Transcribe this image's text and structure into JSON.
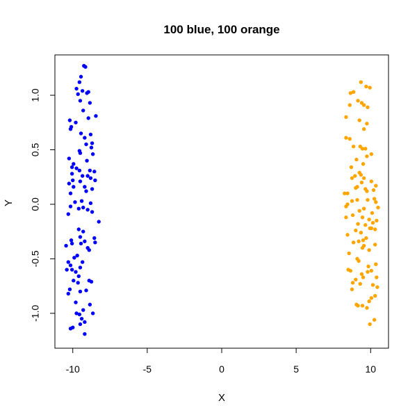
{
  "chart_data": {
    "type": "scatter",
    "title": "100 blue, 100 orange",
    "xlabel": "X",
    "ylabel": "Y",
    "xlim": [
      -11.2,
      11.2
    ],
    "ylim": [
      -1.32,
      1.37
    ],
    "xticks": [
      -10,
      -5,
      0,
      5,
      10
    ],
    "yticks": [
      -1.0,
      -0.5,
      0.0,
      0.5,
      1.0
    ],
    "xtick_labels": [
      "-10",
      "-5",
      "0",
      "5",
      "10"
    ],
    "ytick_labels": [
      "-1.0",
      "-0.5",
      "0.0",
      "0.5",
      "1.0"
    ],
    "grid": false,
    "series": [
      {
        "color": "#0000ff",
        "points": [
          [
            -9.25,
            1.27
          ],
          [
            -9.15,
            1.26
          ],
          [
            -9.45,
            1.17
          ],
          [
            -9.55,
            1.12
          ],
          [
            -9.75,
            1.06
          ],
          [
            -9.35,
            1.04
          ],
          [
            -8.95,
            1.03
          ],
          [
            -9.05,
            1.02
          ],
          [
            -9.65,
            1.01
          ],
          [
            -9.5,
            0.95
          ],
          [
            -8.85,
            0.93
          ],
          [
            -9.3,
            0.86
          ],
          [
            -8.45,
            0.81
          ],
          [
            -8.95,
            0.79
          ],
          [
            -10.2,
            0.77
          ],
          [
            -9.8,
            0.75
          ],
          [
            -10.1,
            0.71
          ],
          [
            -10.15,
            0.69
          ],
          [
            -9.45,
            0.65
          ],
          [
            -8.8,
            0.64
          ],
          [
            -9.2,
            0.61
          ],
          [
            -8.7,
            0.56
          ],
          [
            -9.1,
            0.55
          ],
          [
            -8.75,
            0.52
          ],
          [
            -9.55,
            0.49
          ],
          [
            -9.5,
            0.47
          ],
          [
            -8.65,
            0.46
          ],
          [
            -10.25,
            0.42
          ],
          [
            -9.05,
            0.4
          ],
          [
            -9.95,
            0.37
          ],
          [
            -10.05,
            0.34
          ],
          [
            -9.75,
            0.33
          ],
          [
            -9.55,
            0.31
          ],
          [
            -8.85,
            0.31
          ],
          [
            -8.55,
            0.3
          ],
          [
            -10.05,
            0.28
          ],
          [
            -9.35,
            0.26
          ],
          [
            -9.0,
            0.26
          ],
          [
            -8.8,
            0.24
          ],
          [
            -10.0,
            0.22
          ],
          [
            -9.5,
            0.21
          ],
          [
            -8.5,
            0.22
          ],
          [
            -10.25,
            0.19
          ],
          [
            -9.95,
            0.16
          ],
          [
            -9.2,
            0.16
          ],
          [
            -8.7,
            0.14
          ],
          [
            -9.1,
            0.12
          ],
          [
            -10.15,
            0.1
          ],
          [
            -9.4,
            0.03
          ],
          [
            -9.85,
            0.02
          ],
          [
            -8.8,
            0.01
          ],
          [
            -10.15,
            -0.02
          ],
          [
            -9.3,
            -0.03
          ],
          [
            -9.6,
            -0.04
          ],
          [
            -9.0,
            -0.05
          ],
          [
            -8.7,
            -0.07
          ],
          [
            -10.3,
            -0.09
          ],
          [
            -8.25,
            -0.16
          ],
          [
            -9.6,
            -0.23
          ],
          [
            -9.3,
            -0.25
          ],
          [
            -9.5,
            -0.3
          ],
          [
            -8.55,
            -0.31
          ],
          [
            -10.1,
            -0.33
          ],
          [
            -10.05,
            -0.36
          ],
          [
            -9.2,
            -0.34
          ],
          [
            -9.45,
            -0.36
          ],
          [
            -8.5,
            -0.35
          ],
          [
            -10.45,
            -0.38
          ],
          [
            -9.0,
            -0.4
          ],
          [
            -8.9,
            -0.42
          ],
          [
            -9.7,
            -0.47
          ],
          [
            -9.9,
            -0.49
          ],
          [
            -10.3,
            -0.53
          ],
          [
            -9.35,
            -0.53
          ],
          [
            -10.15,
            -0.56
          ],
          [
            -10.05,
            -0.6
          ],
          [
            -10.4,
            -0.6
          ],
          [
            -9.8,
            -0.62
          ],
          [
            -9.5,
            -0.58
          ],
          [
            -9.6,
            -0.66
          ],
          [
            -9.95,
            -0.7
          ],
          [
            -8.9,
            -0.7
          ],
          [
            -9.65,
            -0.72
          ],
          [
            -8.75,
            -0.71
          ],
          [
            -10.2,
            -0.78
          ],
          [
            -9.5,
            -0.8
          ],
          [
            -9.1,
            -0.79
          ],
          [
            -10.3,
            -0.82
          ],
          [
            -9.8,
            -0.9
          ],
          [
            -8.85,
            -0.92
          ],
          [
            -9.3,
            -0.97
          ],
          [
            -8.65,
            -1.0
          ],
          [
            -9.75,
            -1.0
          ],
          [
            -9.55,
            -1.01
          ],
          [
            -9.4,
            -1.05
          ],
          [
            -9.2,
            -1.08
          ],
          [
            -9.5,
            -1.1
          ],
          [
            -10.0,
            -1.13
          ],
          [
            -10.15,
            -1.14
          ],
          [
            -9.2,
            -1.19
          ]
        ]
      },
      {
        "color": "#ffa500",
        "points": [
          [
            9.35,
            1.12
          ],
          [
            9.7,
            1.08
          ],
          [
            9.95,
            1.07
          ],
          [
            8.85,
            1.03
          ],
          [
            8.65,
            1.02
          ],
          [
            9.15,
            0.95
          ],
          [
            9.4,
            0.93
          ],
          [
            9.55,
            0.91
          ],
          [
            8.6,
            0.91
          ],
          [
            9.8,
            0.89
          ],
          [
            8.35,
            0.8
          ],
          [
            9.25,
            0.77
          ],
          [
            9.75,
            0.74
          ],
          [
            9.55,
            0.69
          ],
          [
            8.35,
            0.61
          ],
          [
            8.6,
            0.6
          ],
          [
            8.85,
            0.53
          ],
          [
            9.3,
            0.53
          ],
          [
            9.45,
            0.51
          ],
          [
            9.65,
            0.51
          ],
          [
            10.05,
            0.46
          ],
          [
            9.75,
            0.44
          ],
          [
            9.05,
            0.41
          ],
          [
            9.5,
            0.37
          ],
          [
            8.7,
            0.34
          ],
          [
            9.25,
            0.29
          ],
          [
            9.35,
            0.27
          ],
          [
            8.95,
            0.26
          ],
          [
            9.55,
            0.24
          ],
          [
            8.75,
            0.24
          ],
          [
            10.05,
            0.21
          ],
          [
            9.4,
            0.2
          ],
          [
            10.35,
            0.17
          ],
          [
            9.1,
            0.16
          ],
          [
            9.0,
            0.15
          ],
          [
            9.65,
            0.14
          ],
          [
            10.2,
            0.13
          ],
          [
            9.75,
            0.12
          ],
          [
            8.45,
            0.1
          ],
          [
            8.25,
            0.1
          ],
          [
            10.25,
            0.05
          ],
          [
            9.8,
            0.04
          ],
          [
            9.1,
            0.04
          ],
          [
            8.75,
            0.03
          ],
          [
            10.35,
            0.02
          ],
          [
            8.45,
            0.0
          ],
          [
            8.35,
            -0.02
          ],
          [
            10.5,
            -0.03
          ],
          [
            9.55,
            -0.04
          ],
          [
            9.25,
            -0.06
          ],
          [
            10.1,
            -0.08
          ],
          [
            8.8,
            -0.1
          ],
          [
            9.45,
            -0.12
          ],
          [
            8.35,
            -0.12
          ],
          [
            9.9,
            -0.14
          ],
          [
            10.4,
            -0.15
          ],
          [
            10.15,
            -0.17
          ],
          [
            9.15,
            -0.18
          ],
          [
            9.65,
            -0.19
          ],
          [
            10.05,
            -0.22
          ],
          [
            9.95,
            -0.22
          ],
          [
            10.3,
            -0.23
          ],
          [
            9.0,
            -0.24
          ],
          [
            9.35,
            -0.26
          ],
          [
            8.45,
            -0.28
          ],
          [
            9.7,
            -0.31
          ],
          [
            9.5,
            -0.33
          ],
          [
            9.2,
            -0.34
          ],
          [
            9.55,
            -0.38
          ],
          [
            8.85,
            -0.35
          ],
          [
            10.3,
            -0.37
          ],
          [
            9.45,
            -0.4
          ],
          [
            9.9,
            -0.42
          ],
          [
            8.55,
            -0.45
          ],
          [
            9.1,
            -0.5
          ],
          [
            9.2,
            -0.52
          ],
          [
            10.35,
            -0.55
          ],
          [
            9.85,
            -0.57
          ],
          [
            10.05,
            -0.61
          ],
          [
            8.5,
            -0.6
          ],
          [
            8.65,
            -0.61
          ],
          [
            9.8,
            -0.62
          ],
          [
            9.4,
            -0.64
          ],
          [
            9.5,
            -0.67
          ],
          [
            10.4,
            -0.67
          ],
          [
            9.0,
            -0.69
          ],
          [
            8.8,
            -0.72
          ],
          [
            9.3,
            -0.73
          ],
          [
            10.15,
            -0.74
          ],
          [
            10.45,
            -0.76
          ],
          [
            8.75,
            -0.78
          ],
          [
            10.3,
            -0.84
          ],
          [
            10.05,
            -0.86
          ],
          [
            9.9,
            -0.89
          ],
          [
            9.05,
            -0.92
          ],
          [
            9.15,
            -0.93
          ],
          [
            9.45,
            -0.93
          ],
          [
            9.75,
            -0.95
          ],
          [
            10.25,
            -1.06
          ],
          [
            9.95,
            -1.1
          ]
        ]
      }
    ]
  }
}
